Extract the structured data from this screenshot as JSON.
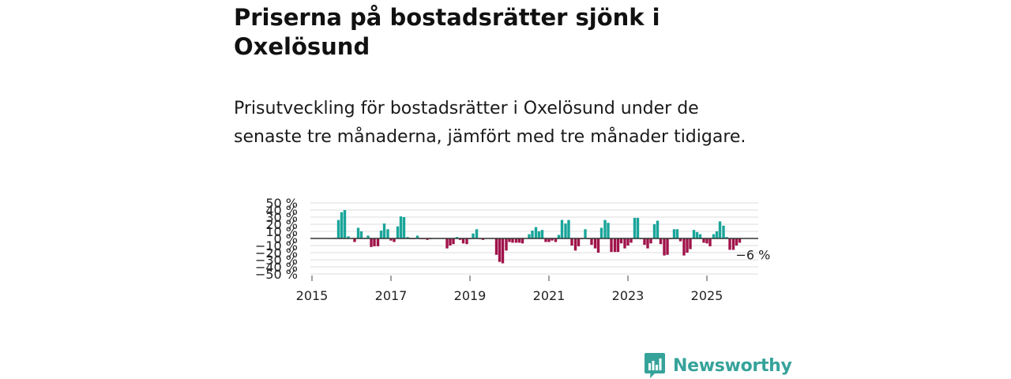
{
  "title": "Priserna på bostadsrätter sjönk i Oxelösund",
  "subtitle": "Prisutveckling för bostadsrätter i Oxelösund under de senaste tre månaderna, jämfört med tre månader tidigare.",
  "brand": {
    "name": "Newsworthy",
    "color": "#36a39b"
  },
  "colors": {
    "positive": "#1aa59a",
    "negative": "#a0134a",
    "grid": "#dddddd",
    "zero_line": "#333333"
  },
  "chart_data": {
    "type": "bar",
    "title": "Priserna på bostadsrätter sjönk i Oxelösund",
    "xlabel": "",
    "ylabel": "",
    "unit": "%",
    "ylim": [
      -50,
      50
    ],
    "y_ticks": [
      {
        "value": 50,
        "label": "50 %"
      },
      {
        "value": 40,
        "label": "40 %"
      },
      {
        "value": 30,
        "label": "30 %"
      },
      {
        "value": 20,
        "label": "20 %"
      },
      {
        "value": 10,
        "label": "10 %"
      },
      {
        "value": 0,
        "label": "0 %"
      },
      {
        "value": -10,
        "label": "−10 %"
      },
      {
        "value": -20,
        "label": "−20 %"
      },
      {
        "value": -30,
        "label": "−30 %"
      },
      {
        "value": -40,
        "label": "−40 %"
      },
      {
        "value": -50,
        "label": "−50 %"
      }
    ],
    "x_range": [
      2015,
      2026.3
    ],
    "x_ticks": [
      {
        "value": 2015,
        "label": "2015"
      },
      {
        "value": 2017,
        "label": "2017"
      },
      {
        "value": 2019,
        "label": "2019"
      },
      {
        "value": 2021,
        "label": "2021"
      },
      {
        "value": 2023,
        "label": "2023"
      },
      {
        "value": 2025,
        "label": "2025"
      }
    ],
    "bar_width_years": 0.068,
    "annotation": {
      "text": "−6 %",
      "x": 2025.85,
      "y": -6
    },
    "series": [
      {
        "name": "Prisutveckling",
        "points": [
          {
            "x": 2015.33,
            "y": 0.4
          },
          {
            "x": 2015.42,
            "y": 0.3
          },
          {
            "x": 2015.5,
            "y": 0.2
          },
          {
            "x": 2015.58,
            "y": 1.0
          },
          {
            "x": 2015.67,
            "y": 26
          },
          {
            "x": 2015.75,
            "y": 37
          },
          {
            "x": 2015.83,
            "y": 40
          },
          {
            "x": 2015.92,
            "y": 3
          },
          {
            "x": 2016.0,
            "y": 0.3
          },
          {
            "x": 2016.08,
            "y": -5
          },
          {
            "x": 2016.17,
            "y": 15
          },
          {
            "x": 2016.25,
            "y": 10
          },
          {
            "x": 2016.33,
            "y": 1
          },
          {
            "x": 2016.42,
            "y": 4
          },
          {
            "x": 2016.5,
            "y": -12
          },
          {
            "x": 2016.58,
            "y": -11
          },
          {
            "x": 2016.67,
            "y": -11
          },
          {
            "x": 2016.75,
            "y": 11
          },
          {
            "x": 2016.83,
            "y": 21
          },
          {
            "x": 2016.92,
            "y": 13
          },
          {
            "x": 2017.0,
            "y": -3
          },
          {
            "x": 2017.08,
            "y": -5
          },
          {
            "x": 2017.17,
            "y": 17
          },
          {
            "x": 2017.25,
            "y": 31
          },
          {
            "x": 2017.33,
            "y": 30
          },
          {
            "x": 2017.42,
            "y": 2
          },
          {
            "x": 2017.5,
            "y": -1
          },
          {
            "x": 2017.58,
            "y": -1
          },
          {
            "x": 2017.67,
            "y": 4
          },
          {
            "x": 2017.75,
            "y": -1
          },
          {
            "x": 2017.83,
            "y": -1
          },
          {
            "x": 2017.92,
            "y": -2
          },
          {
            "x": 2018.0,
            "y": -1
          },
          {
            "x": 2018.08,
            "y": -0.5
          },
          {
            "x": 2018.17,
            "y": -0.3
          },
          {
            "x": 2018.25,
            "y": -0.5
          },
          {
            "x": 2018.33,
            "y": -0.5
          },
          {
            "x": 2018.42,
            "y": -14
          },
          {
            "x": 2018.5,
            "y": -10
          },
          {
            "x": 2018.58,
            "y": -8
          },
          {
            "x": 2018.67,
            "y": 2
          },
          {
            "x": 2018.75,
            "y": -2
          },
          {
            "x": 2018.83,
            "y": -7
          },
          {
            "x": 2018.92,
            "y": -8
          },
          {
            "x": 2019.0,
            "y": -1
          },
          {
            "x": 2019.08,
            "y": 7
          },
          {
            "x": 2019.17,
            "y": 13
          },
          {
            "x": 2019.25,
            "y": -1
          },
          {
            "x": 2019.33,
            "y": -2
          },
          {
            "x": 2019.42,
            "y": -0.5
          },
          {
            "x": 2019.5,
            "y": -0.5
          },
          {
            "x": 2019.58,
            "y": -0.5
          },
          {
            "x": 2019.67,
            "y": -23
          },
          {
            "x": 2019.75,
            "y": -33
          },
          {
            "x": 2019.83,
            "y": -35
          },
          {
            "x": 2019.92,
            "y": -17
          },
          {
            "x": 2020.0,
            "y": -5
          },
          {
            "x": 2020.08,
            "y": -6
          },
          {
            "x": 2020.17,
            "y": -6
          },
          {
            "x": 2020.25,
            "y": -6
          },
          {
            "x": 2020.33,
            "y": -7
          },
          {
            "x": 2020.42,
            "y": 0.5
          },
          {
            "x": 2020.5,
            "y": 6
          },
          {
            "x": 2020.58,
            "y": 11
          },
          {
            "x": 2020.67,
            "y": 16
          },
          {
            "x": 2020.75,
            "y": 10
          },
          {
            "x": 2020.83,
            "y": 12
          },
          {
            "x": 2020.92,
            "y": -5
          },
          {
            "x": 2021.0,
            "y": -5
          },
          {
            "x": 2021.08,
            "y": -3
          },
          {
            "x": 2021.17,
            "y": -5
          },
          {
            "x": 2021.25,
            "y": 5
          },
          {
            "x": 2021.33,
            "y": 26
          },
          {
            "x": 2021.42,
            "y": 21
          },
          {
            "x": 2021.5,
            "y": 26
          },
          {
            "x": 2021.58,
            "y": -10
          },
          {
            "x": 2021.67,
            "y": -17
          },
          {
            "x": 2021.75,
            "y": -11
          },
          {
            "x": 2021.83,
            "y": -1
          },
          {
            "x": 2021.92,
            "y": 13
          },
          {
            "x": 2022.0,
            "y": -1
          },
          {
            "x": 2022.08,
            "y": -9
          },
          {
            "x": 2022.17,
            "y": -14
          },
          {
            "x": 2022.25,
            "y": -20
          },
          {
            "x": 2022.33,
            "y": 15
          },
          {
            "x": 2022.42,
            "y": 26
          },
          {
            "x": 2022.5,
            "y": 22
          },
          {
            "x": 2022.58,
            "y": -19
          },
          {
            "x": 2022.67,
            "y": -19
          },
          {
            "x": 2022.75,
            "y": -19
          },
          {
            "x": 2022.83,
            "y": -7
          },
          {
            "x": 2022.92,
            "y": -14
          },
          {
            "x": 2023.0,
            "y": -10
          },
          {
            "x": 2023.08,
            "y": -6
          },
          {
            "x": 2023.17,
            "y": 29
          },
          {
            "x": 2023.25,
            "y": 29
          },
          {
            "x": 2023.33,
            "y": -1
          },
          {
            "x": 2023.42,
            "y": -9
          },
          {
            "x": 2023.5,
            "y": -14
          },
          {
            "x": 2023.58,
            "y": -7
          },
          {
            "x": 2023.67,
            "y": 20
          },
          {
            "x": 2023.75,
            "y": 25
          },
          {
            "x": 2023.83,
            "y": -8
          },
          {
            "x": 2023.92,
            "y": -24
          },
          {
            "x": 2024.0,
            "y": -23
          },
          {
            "x": 2024.08,
            "y": -1
          },
          {
            "x": 2024.17,
            "y": 13
          },
          {
            "x": 2024.25,
            "y": 13
          },
          {
            "x": 2024.33,
            "y": -4
          },
          {
            "x": 2024.42,
            "y": -24
          },
          {
            "x": 2024.5,
            "y": -20
          },
          {
            "x": 2024.58,
            "y": -15
          },
          {
            "x": 2024.67,
            "y": 12
          },
          {
            "x": 2024.75,
            "y": 9
          },
          {
            "x": 2024.83,
            "y": 6
          },
          {
            "x": 2024.92,
            "y": -6
          },
          {
            "x": 2025.0,
            "y": -7
          },
          {
            "x": 2025.08,
            "y": -11
          },
          {
            "x": 2025.17,
            "y": 6
          },
          {
            "x": 2025.25,
            "y": 10
          },
          {
            "x": 2025.33,
            "y": 24
          },
          {
            "x": 2025.42,
            "y": 18
          },
          {
            "x": 2025.5,
            "y": 2
          },
          {
            "x": 2025.58,
            "y": -16
          },
          {
            "x": 2025.67,
            "y": -16
          },
          {
            "x": 2025.75,
            "y": -10
          },
          {
            "x": 2025.83,
            "y": -6
          }
        ]
      }
    ]
  }
}
